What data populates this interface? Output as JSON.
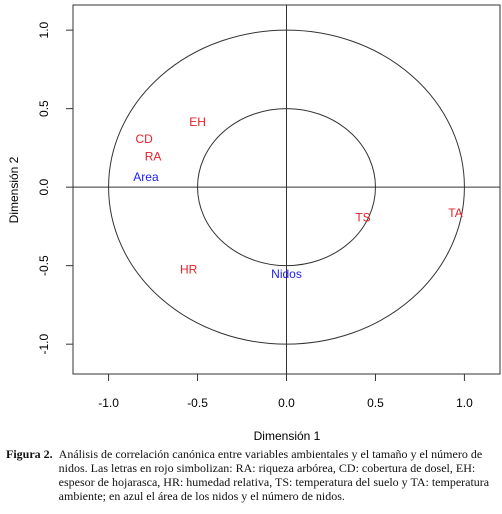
{
  "chart_data": {
    "type": "text-scatter",
    "xlabel": "Dimensión 1",
    "ylabel": "Dimensión 2",
    "xlim": [
      -1.2,
      1.2
    ],
    "ylim": [
      -1.19,
      1.16
    ],
    "xticks": [
      {
        "value": -1,
        "label": "-1.0"
      },
      {
        "value": -0.5,
        "label": "-0.5"
      },
      {
        "value": 0,
        "label": "0.0"
      },
      {
        "value": 0.5,
        "label": "0.5"
      },
      {
        "value": 1,
        "label": "1.0"
      }
    ],
    "yticks": [
      {
        "value": -1,
        "label": "-1.0"
      },
      {
        "value": -0.5,
        "label": "-0.5"
      },
      {
        "value": 0,
        "label": "0.0"
      },
      {
        "value": 0.5,
        "label": "0.5"
      },
      {
        "value": 1,
        "label": "1.0"
      }
    ],
    "circles": [
      1,
      0.5
    ],
    "points": [
      {
        "label": "EH",
        "x": -0.5,
        "y": 0.41,
        "color": "#e8202a"
      },
      {
        "label": "CD",
        "x": -0.8,
        "y": 0.3,
        "color": "#e8202a"
      },
      {
        "label": "RA",
        "x": -0.75,
        "y": 0.19,
        "color": "#e8202a"
      },
      {
        "label": "Area",
        "x": -0.79,
        "y": 0.06,
        "color": "#1c1cf0"
      },
      {
        "label": "TS",
        "x": 0.43,
        "y": -0.2,
        "color": "#e8202a"
      },
      {
        "label": "TA",
        "x": 0.95,
        "y": -0.17,
        "color": "#e8202a"
      },
      {
        "label": "HR",
        "x": -0.55,
        "y": -0.53,
        "color": "#e8202a"
      },
      {
        "label": "Nidos",
        "x": 0,
        "y": -0.56,
        "color": "#1c1cf0"
      }
    ]
  },
  "caption": {
    "label": "Figura 2.",
    "text": "Análisis de correlación canónica entre variables ambientales y el tamaño y el número de nidos. Las letras en rojo simbolizan: RA: riqueza arbórea, CD: cobertura de dosel, EH: espesor de hojarasca, HR: humedad relativa, TS: temperatura del suelo y TA: temperatura ambiente; en azul el área de los nidos y el número de nidos."
  }
}
